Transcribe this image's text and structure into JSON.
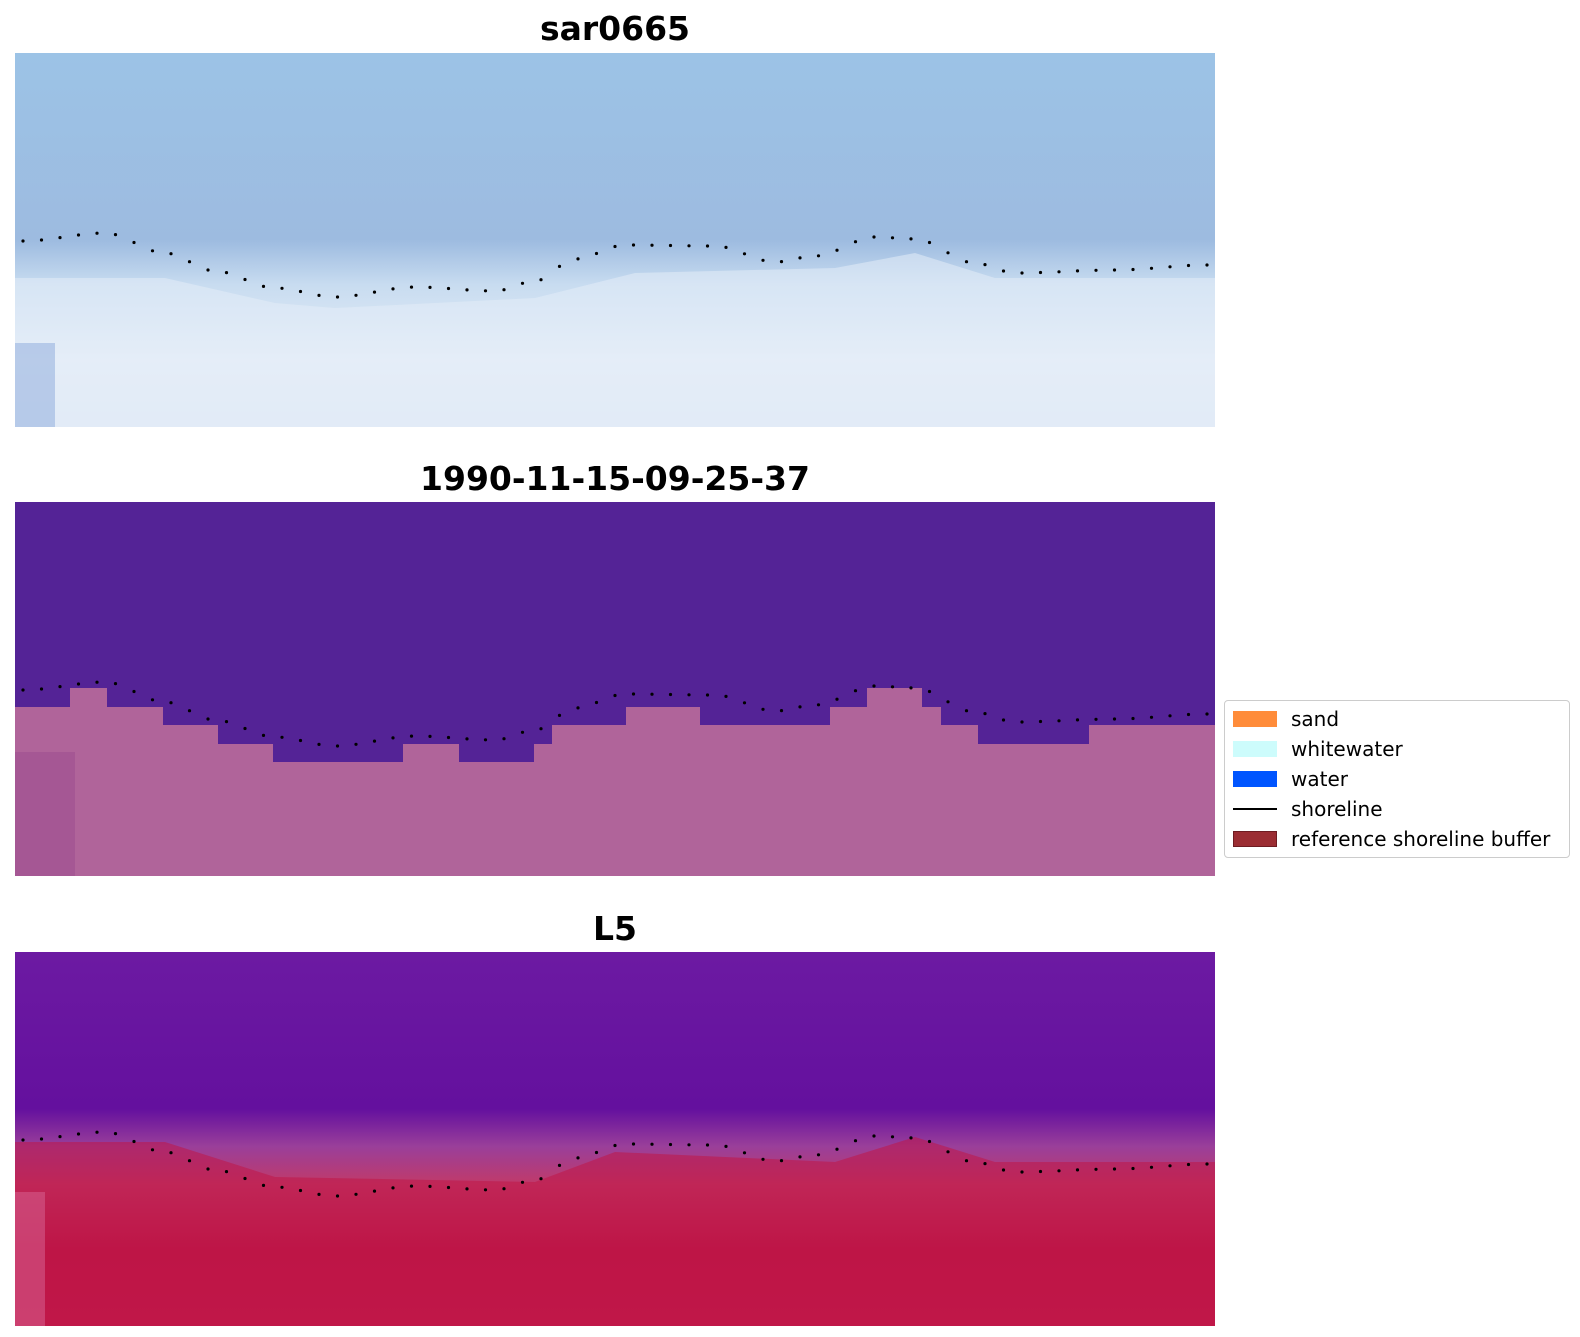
{
  "panels": [
    {
      "title": "sar0665"
    },
    {
      "title": "1990-11-15-09-25-37"
    },
    {
      "title": "L5"
    }
  ],
  "legend": {
    "items": [
      {
        "label": "sand",
        "color": "#ff8c3a"
      },
      {
        "label": "whitewater",
        "color": "#cdfcfc"
      },
      {
        "label": "water",
        "color": "#0055ff"
      },
      {
        "label": "shoreline",
        "color": "#000000"
      },
      {
        "label": "reference shoreline buffer",
        "color": "#9b2d33"
      }
    ]
  },
  "colors": {
    "sar_water": "#9dbde0",
    "sar_land": "#e3ecf6",
    "class_water": "#542396",
    "class_land": "#b0639a",
    "l5_water": "#6a14a0",
    "l5_land": "#c01848",
    "shoreline_dots": "#000000"
  }
}
